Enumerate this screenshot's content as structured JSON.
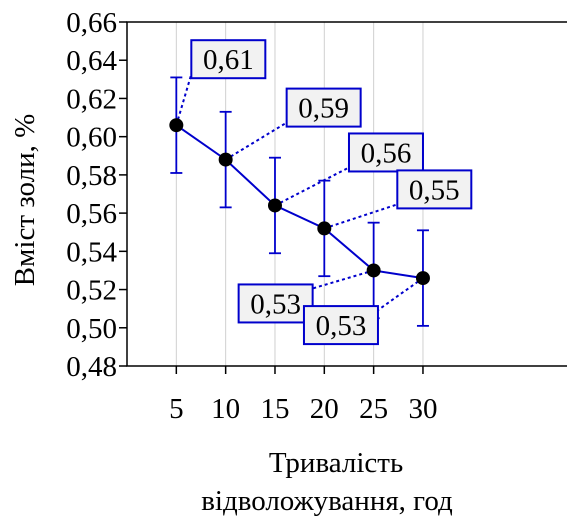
{
  "chart_data": {
    "type": "line",
    "xlabel_lines": [
      "Тривалість",
      "відволожування, год"
    ],
    "ylabel": "Вміст золи, %",
    "x": [
      5,
      10,
      15,
      20,
      25,
      30
    ],
    "x_tick_labels": [
      "5",
      "10",
      "15",
      "20",
      "25",
      "30"
    ],
    "y_tick_labels": [
      "0,66",
      "0,64",
      "0,62",
      "0,60",
      "0,58",
      "0,56",
      "0,54",
      "0,52",
      "0,50",
      "0,48"
    ],
    "ylim": [
      0.48,
      0.66
    ],
    "xlim": [
      0,
      35
    ],
    "grid": "vertical",
    "series": [
      {
        "values": [
          0.606,
          0.588,
          0.564,
          0.552,
          0.53,
          0.526
        ],
        "error_upper": [
          0.631,
          0.613,
          0.589,
          0.577,
          0.555,
          0.551
        ],
        "error_lower": [
          0.581,
          0.563,
          0.539,
          0.527,
          0.505,
          0.501
        ],
        "data_labels": [
          "0,61",
          "0,59",
          "0,56",
          "0,55",
          "0,53",
          "0,53"
        ]
      }
    ],
    "colors": {
      "line": "#0000cc",
      "marker": "#000000",
      "label_border": "#0000cc",
      "label_fill": "#f2f2f2",
      "grid": "#d0d0d0"
    }
  }
}
